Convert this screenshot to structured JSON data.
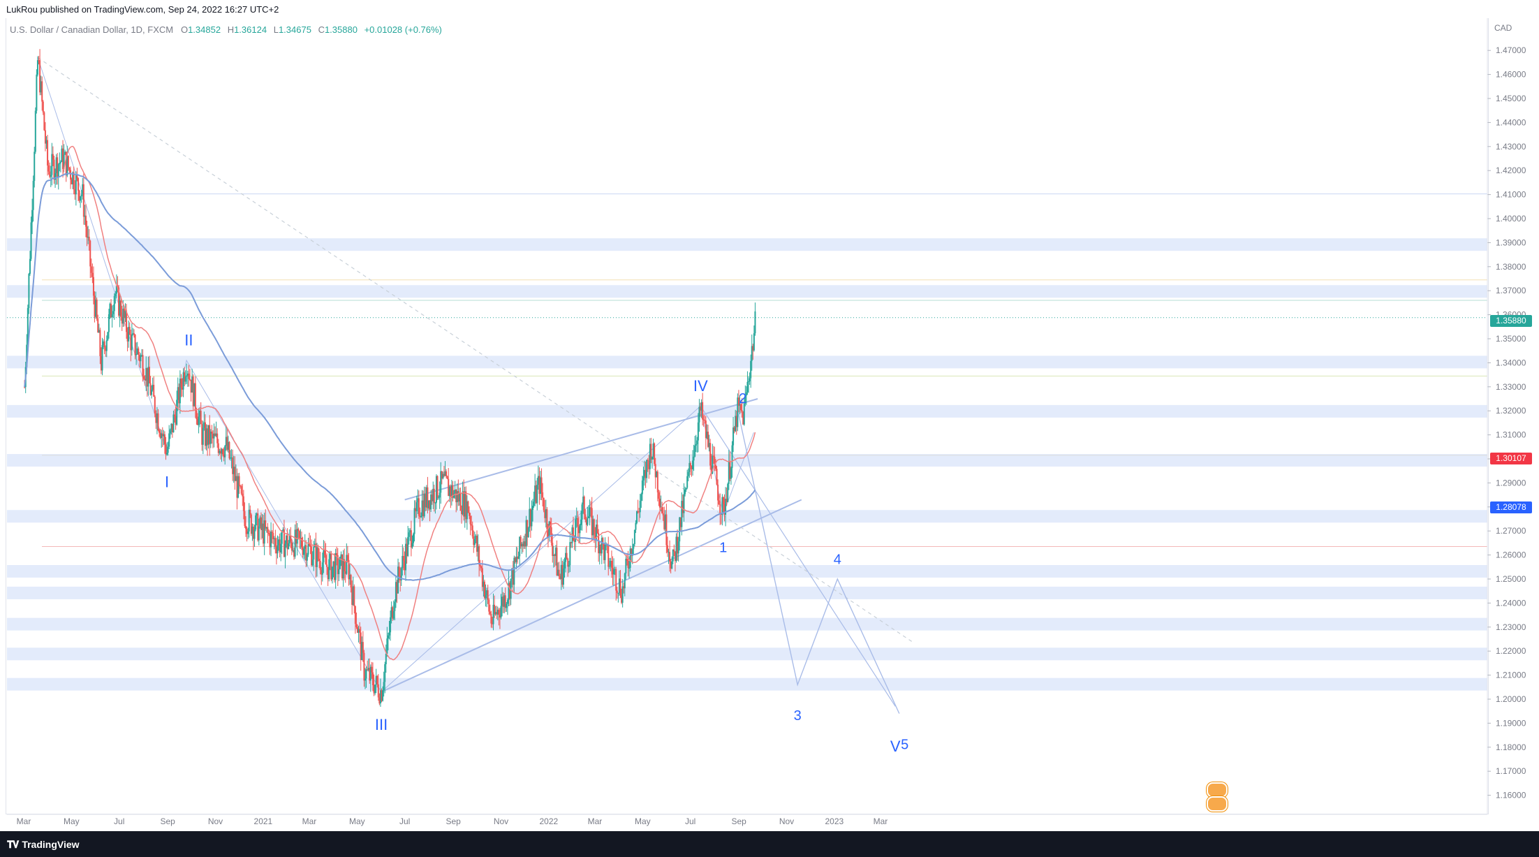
{
  "header": {
    "publisher": "LukRou published on TradingView.com, Sep 24, 2022 16:27 UTC+2"
  },
  "symbol": {
    "name": "U.S. Dollar / Canadian Dollar, 1D, FXCM",
    "open_label": "O",
    "open": "1.34852",
    "high_label": "H",
    "high": "1.36124",
    "low_label": "L",
    "low": "1.34675",
    "close_label": "C",
    "close": "1.35880",
    "change": "+0.01028 (+0.76%)"
  },
  "price_axis": {
    "currency": "CAD",
    "ticks": [
      "1.47000",
      "1.46000",
      "1.45000",
      "1.44000",
      "1.43000",
      "1.42000",
      "1.41000",
      "1.40000",
      "1.39000",
      "1.38000",
      "1.37000",
      "1.36000",
      "1.35000",
      "1.34000",
      "1.33000",
      "1.32000",
      "1.31000",
      "1.30000",
      "1.29000",
      "1.28000",
      "1.27000",
      "1.26000",
      "1.25000",
      "1.24000",
      "1.23000",
      "1.22000",
      "1.21000",
      "1.20000",
      "1.19000",
      "1.18000",
      "1.17000",
      "1.16000"
    ],
    "current_price": "1.35880",
    "ma_fast_price": "1.30107",
    "ma_slow_price": "1.28078"
  },
  "time_axis": {
    "ticks": [
      "Mar",
      "May",
      "Jul",
      "Sep",
      "Nov",
      "2021",
      "Mar",
      "May",
      "Jul",
      "Sep",
      "Nov",
      "2022",
      "Mar",
      "May",
      "Jul",
      "Sep",
      "Nov",
      "2023",
      "Mar"
    ]
  },
  "wave_labels": {
    "w1": "I",
    "w2": "II",
    "w3": "III",
    "w4": "IV",
    "w5": "V",
    "s1": "1",
    "s2": "2",
    "s3": "3",
    "s4": "4",
    "s5": "5"
  },
  "footer": {
    "brand": "TradingView"
  },
  "colors": {
    "up": "#26a69a",
    "down": "#ef5350",
    "ma_fast": "#f08080",
    "ma_slow": "#7b9cd9",
    "zone": "#e3ebfb",
    "trendline": "#a9bce8",
    "wave_label": "#2962ff",
    "current_badge": "#26a69a",
    "ma_fast_badge": "#f23645",
    "ma_slow_badge": "#2962ff"
  },
  "chart_data": {
    "type": "candlestick",
    "title": "U.S. Dollar / Canadian Dollar, 1D, FXCM",
    "ylim": [
      1.15,
      1.475
    ],
    "path_points": [
      [
        "2020-03-02",
        1.33
      ],
      [
        "2020-03-19",
        1.467
      ],
      [
        "2020-04-01",
        1.42
      ],
      [
        "2020-04-21",
        1.425
      ],
      [
        "2020-05-15",
        1.41
      ],
      [
        "2020-06-08",
        1.34
      ],
      [
        "2020-06-25",
        1.37
      ],
      [
        "2020-07-15",
        1.35
      ],
      [
        "2020-08-01",
        1.34
      ],
      [
        "2020-08-31",
        1.303
      ],
      [
        "2020-09-25",
        1.341
      ],
      [
        "2020-10-15",
        1.31
      ],
      [
        "2020-11-15",
        1.305
      ],
      [
        "2020-12-10",
        1.275
      ],
      [
        "2021-01-20",
        1.265
      ],
      [
        "2021-02-20",
        1.265
      ],
      [
        "2021-03-25",
        1.255
      ],
      [
        "2021-04-20",
        1.255
      ],
      [
        "2021-05-10",
        1.212
      ],
      [
        "2021-06-01",
        1.203
      ],
      [
        "2021-06-18",
        1.245
      ],
      [
        "2021-07-19",
        1.28
      ],
      [
        "2021-08-19",
        1.29
      ],
      [
        "2021-09-20",
        1.28
      ],
      [
        "2021-10-20",
        1.232
      ],
      [
        "2021-11-10",
        1.245
      ],
      [
        "2021-12-20",
        1.29
      ],
      [
        "2022-01-15",
        1.25
      ],
      [
        "2022-02-15",
        1.28
      ],
      [
        "2022-04-05",
        1.245
      ],
      [
        "2022-05-12",
        1.306
      ],
      [
        "2022-06-08",
        1.255
      ],
      [
        "2022-07-14",
        1.32
      ],
      [
        "2022-08-12",
        1.277
      ],
      [
        "2022-08-30",
        1.32
      ],
      [
        "2022-09-07",
        1.318
      ],
      [
        "2022-09-23",
        1.3588
      ]
    ],
    "zones": [
      1.3892,
      1.3697,
      1.3403,
      1.3198,
      1.2994,
      1.2761,
      1.2532,
      1.2442,
      1.2312,
      1.2188,
      1.2062
    ],
    "trendlines": [
      [
        [
          "2021-06-01",
          1.203
        ],
        [
          "2022-11-20",
          1.283
        ]
      ],
      [
        [
          "2021-07-01",
          1.283
        ],
        [
          "2022-09-25",
          1.325
        ]
      ],
      [
        [
          "2020-03-19",
          1.467
        ],
        [
          "2023-04-10",
          1.224
        ]
      ]
    ],
    "projection": [
      [
        "2022-08-30",
        1.321
      ],
      [
        "2022-11-15",
        1.206
      ],
      [
        "2023-01-05",
        1.25
      ],
      [
        "2023-03-25",
        1.194
      ]
    ]
  }
}
